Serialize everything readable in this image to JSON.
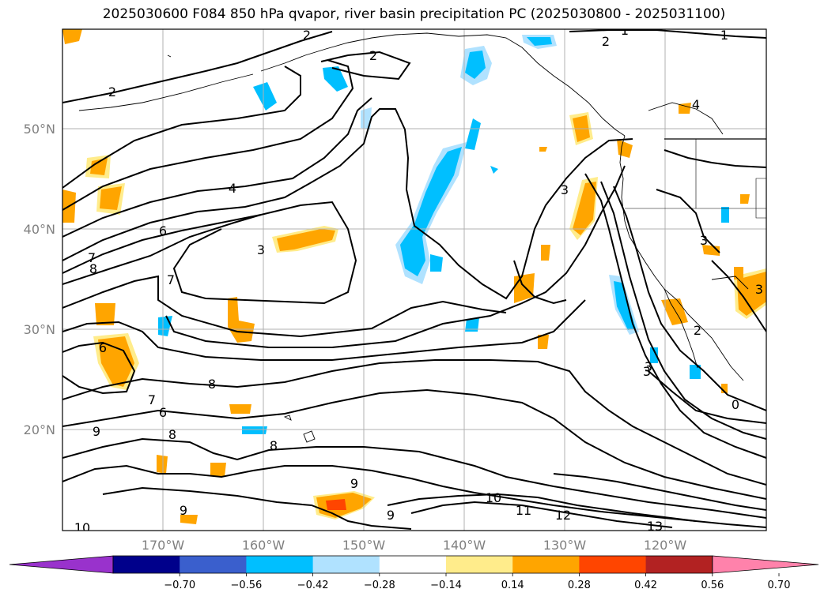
{
  "title": "2025030600 F084 850 hPa qvapor, river basin precipitation PC (2025030800 - 2025031100)",
  "lon_labels": [
    "170°W",
    "160°W",
    "150°W",
    "140°W",
    "130°W",
    "120°W"
  ],
  "lat_labels": [
    "50°N",
    "40°N",
    "30°N",
    "20°N"
  ],
  "colorbar": {
    "colors": [
      "#9932cc",
      "#00008b",
      "#3a5fcd",
      "#00bfff",
      "#b0e2ff",
      "#ffffff",
      "#ffec8b",
      "#ffa500",
      "#ff4500",
      "#b22222",
      "#ff82ab"
    ],
    "bounds": [
      -0.7,
      -0.56,
      -0.42,
      -0.28,
      -0.14,
      0.14,
      0.28,
      0.42,
      0.56,
      0.7
    ],
    "tick_labels": [
      "−0.70",
      "−0.56",
      "−0.42",
      "−0.28",
      "−0.14",
      "0.14",
      "0.28",
      "0.42",
      "0.56",
      "0.70"
    ]
  },
  "contour_labels": [
    "1",
    "1",
    "2",
    "2",
    "2",
    "2",
    "3",
    "3",
    "3",
    "3",
    "4",
    "4",
    "6",
    "6",
    "6",
    "7",
    "7",
    "7",
    "8",
    "8",
    "8",
    "8",
    "9",
    "9",
    "9",
    "9",
    "10",
    "10",
    "11",
    "12",
    "13",
    "0",
    "2",
    "3",
    "3"
  ],
  "icons": [
    "map-frame",
    "colorbar-extend-arrows"
  ]
}
